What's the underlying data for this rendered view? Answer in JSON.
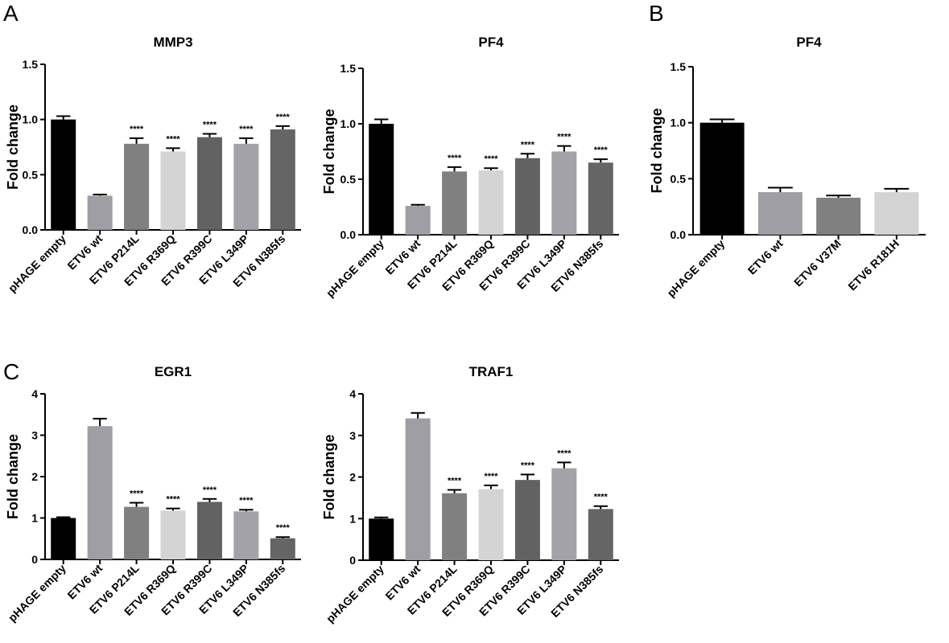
{
  "panels": [
    {
      "letter": "A"
    },
    {
      "letter": "B"
    },
    {
      "letter": "C"
    }
  ],
  "chart_data": [
    {
      "type": "bar",
      "panel": "A",
      "title": "MMP3",
      "ylabel": "Fold change",
      "ylim": [
        0,
        1.5
      ],
      "yticks": [
        "0.0",
        "0.5",
        "1.0",
        "1.5"
      ],
      "categories": [
        "pHAGE empty",
        "ETV6 wt",
        "ETV6 P214L",
        "ETV6 R369Q",
        "ETV6 R399C",
        "ETV6 L349P",
        "ETV6 N385fs"
      ],
      "values": [
        1.0,
        0.31,
        0.78,
        0.71,
        0.84,
        0.78,
        0.91
      ],
      "errors": [
        0.03,
        0.01,
        0.05,
        0.03,
        0.03,
        0.05,
        0.03
      ],
      "significance": [
        "",
        "",
        "****",
        "****",
        "****",
        "****",
        "****"
      ],
      "colors": [
        "#000000",
        "#9e9ea4",
        "#808080",
        "#d4d4d4",
        "#626262",
        "#a2a2a8",
        "#656565"
      ]
    },
    {
      "type": "bar",
      "panel": "A",
      "title": "PF4",
      "ylabel": "Fold change",
      "ylim": [
        0,
        1.5
      ],
      "yticks": [
        "0.0",
        "0.5",
        "1.0",
        "1.5"
      ],
      "categories": [
        "pHAGE empty",
        "ETV6 wt",
        "ETV6 P214L",
        "ETV6 R369Q",
        "ETV6 R399C",
        "ETV6 L349P",
        "ETV6 N385fs"
      ],
      "values": [
        1.0,
        0.26,
        0.57,
        0.58,
        0.69,
        0.75,
        0.65
      ],
      "errors": [
        0.04,
        0.01,
        0.04,
        0.02,
        0.04,
        0.05,
        0.03
      ],
      "significance": [
        "",
        "",
        "****",
        "****",
        "****",
        "****",
        "****"
      ],
      "colors": [
        "#000000",
        "#9e9ea4",
        "#808080",
        "#d4d4d4",
        "#626262",
        "#a2a2a8",
        "#656565"
      ]
    },
    {
      "type": "bar",
      "panel": "B",
      "title": "PF4",
      "ylabel": "Fold change",
      "ylim": [
        0,
        1.5
      ],
      "yticks": [
        "0.0",
        "0.5",
        "1.0",
        "1.5"
      ],
      "categories": [
        "pHAGE empty",
        "ETV6 wt",
        "ETV6 V37M",
        "ETV6 R181H"
      ],
      "values": [
        1.0,
        0.38,
        0.33,
        0.38
      ],
      "errors": [
        0.03,
        0.04,
        0.02,
        0.03
      ],
      "significance": [
        "",
        "",
        "",
        ""
      ],
      "colors": [
        "#000000",
        "#9e9ea4",
        "#808080",
        "#d4d4d4"
      ]
    },
    {
      "type": "bar",
      "panel": "C",
      "title": "EGR1",
      "ylabel": "Fold change",
      "ylim": [
        0,
        4
      ],
      "yticks": [
        "0",
        "1",
        "2",
        "3",
        "4"
      ],
      "categories": [
        "pHAGE empty",
        "ETV6 wt",
        "ETV6 P214L",
        "ETV6 R369Q",
        "ETV6 R399C",
        "ETV6 L349P",
        "ETV6 N385fs"
      ],
      "values": [
        1.0,
        3.22,
        1.27,
        1.18,
        1.39,
        1.16,
        0.51
      ],
      "errors": [
        0.02,
        0.18,
        0.1,
        0.05,
        0.07,
        0.04,
        0.03
      ],
      "significance": [
        "",
        "",
        "****",
        "****",
        "****",
        "****",
        "****"
      ],
      "colors": [
        "#000000",
        "#9e9ea4",
        "#808080",
        "#d4d4d4",
        "#626262",
        "#a2a2a8",
        "#656565"
      ]
    },
    {
      "type": "bar",
      "panel": "C",
      "title": "TRAF1",
      "ylabel": "Fold change",
      "ylim": [
        0,
        4
      ],
      "yticks": [
        "0",
        "1",
        "2",
        "3",
        "4"
      ],
      "categories": [
        "pHAGE empty",
        "ETV6 wt",
        "ETV6 P214L",
        "ETV6 R369Q",
        "ETV6 R399C",
        "ETV6 L349P",
        "ETV6 N385fs"
      ],
      "values": [
        1.0,
        3.41,
        1.61,
        1.71,
        1.93,
        2.21,
        1.23
      ],
      "errors": [
        0.03,
        0.13,
        0.08,
        0.09,
        0.13,
        0.14,
        0.07
      ],
      "significance": [
        "",
        "",
        "****",
        "****",
        "****",
        "****",
        "****"
      ],
      "colors": [
        "#000000",
        "#9e9ea4",
        "#808080",
        "#d4d4d4",
        "#626262",
        "#a2a2a8",
        "#656565"
      ]
    }
  ]
}
